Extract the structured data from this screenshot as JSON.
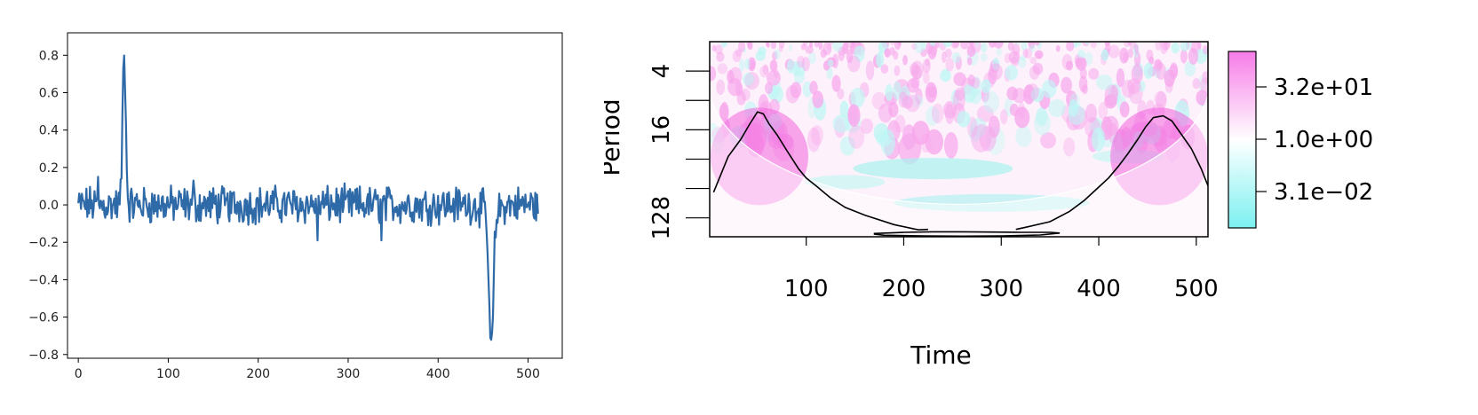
{
  "chart_data": [
    {
      "type": "line",
      "title": "",
      "xlabel": "",
      "ylabel": "",
      "xlim": [
        -12,
        538
      ],
      "ylim": [
        -0.82,
        0.92
      ],
      "x_ticks": [
        0,
        100,
        200,
        300,
        400,
        500
      ],
      "y_ticks": [
        -0.8,
        -0.6,
        -0.4,
        -0.2,
        0.0,
        0.2,
        0.4,
        0.6,
        0.8
      ],
      "y_tick_labels": [
        "−0.8",
        "−0.6",
        "−0.4",
        "−0.2",
        "0.0",
        "0.2",
        "0.4",
        "0.6",
        "0.8"
      ],
      "line_color": "#2f6aa8",
      "grid": false,
      "series": [
        {
          "x_start": 0,
          "x_step": 1,
          "notable_points": [
            {
              "x": 51,
              "y": 0.83
            },
            {
              "x": 459,
              "y": -0.73
            }
          ],
          "baseline_noise": "approx. within ±0.15 around 0.0",
          "length": 512
        }
      ]
    },
    {
      "type": "heatmap",
      "title": "",
      "xlabel": "Time",
      "ylabel": "Period",
      "x_ticks": [
        100,
        200,
        300,
        400,
        500
      ],
      "y_ticks": [
        4,
        16,
        128
      ],
      "y_scale": "log2",
      "x_range": [
        1,
        512
      ],
      "period_range": [
        2,
        200
      ],
      "colorbar": {
        "tick_labels": [
          "3.2e+01",
          "1.0e+00",
          "3.1e−02"
        ],
        "colors": [
          "#f77ce8",
          "#ffffff",
          "#7bf0f0"
        ]
      },
      "significant_regions": [
        {
          "time_range": [
            10,
            150
          ],
          "peak_time": 52,
          "min_period": 10,
          "max_period": 150
        },
        {
          "time_range": [
            370,
            510
          ],
          "peak_time": 462,
          "min_period": 12,
          "max_period": 150
        },
        {
          "time_range": [
            170,
            360
          ],
          "min_period": 150,
          "max_period": 200
        }
      ],
      "cone_of_influence": "shaded region near left, right and bottom edges"
    }
  ]
}
